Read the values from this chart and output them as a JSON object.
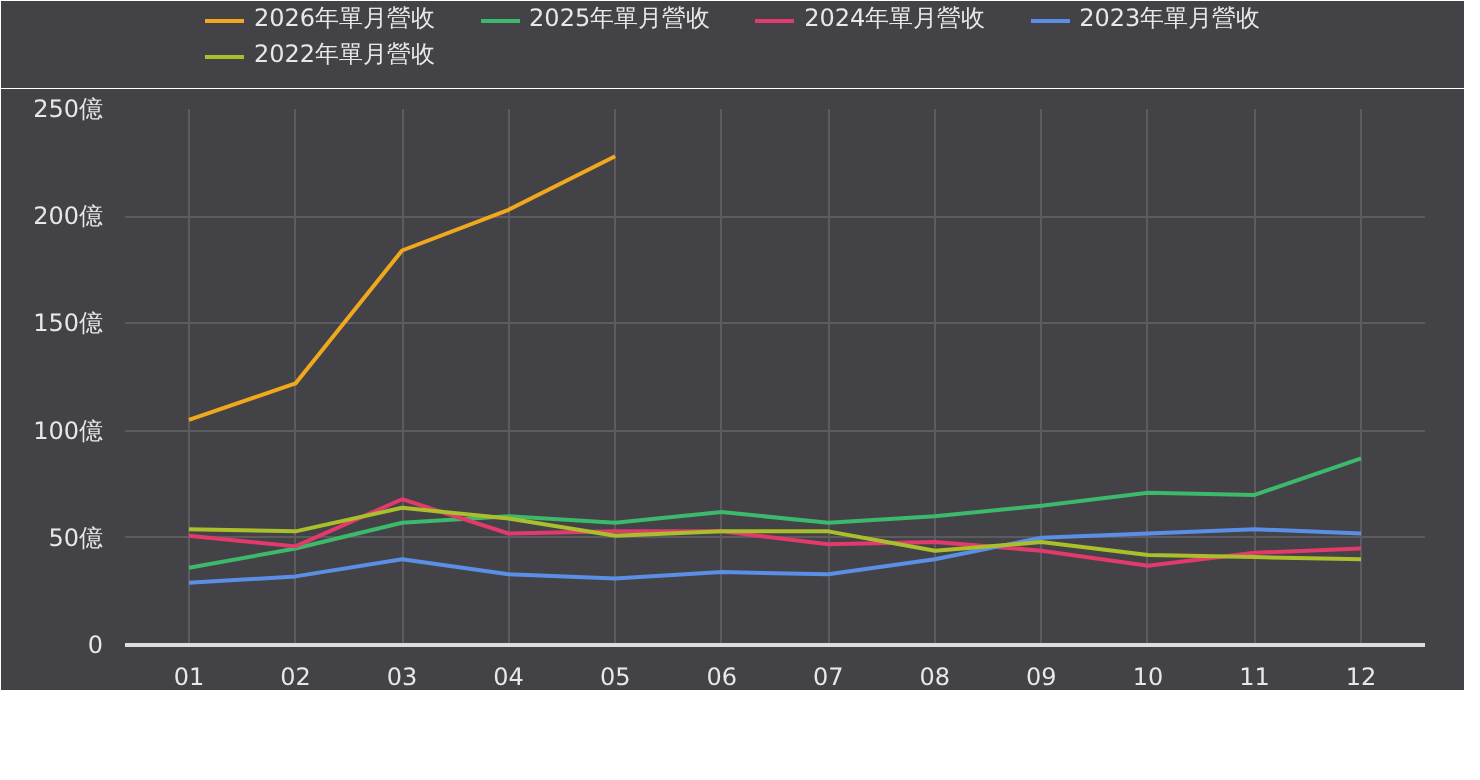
{
  "chart_data": {
    "type": "line",
    "categories": [
      "01",
      "02",
      "03",
      "04",
      "05",
      "06",
      "07",
      "08",
      "09",
      "10",
      "11",
      "12"
    ],
    "series": [
      {
        "name": "2026年單月營收",
        "color": "#f0a81c",
        "values": [
          105,
          122,
          184,
          203,
          228,
          null,
          null,
          null,
          null,
          null,
          null,
          null
        ]
      },
      {
        "name": "2025年單月營收",
        "color": "#3cb96a",
        "values": [
          36,
          45,
          57,
          60,
          57,
          62,
          57,
          60,
          65,
          71,
          70,
          87
        ]
      },
      {
        "name": "2024年單月營收",
        "color": "#e23a6d",
        "values": [
          51,
          46,
          68,
          52,
          53,
          53,
          47,
          48,
          44,
          37,
          43,
          45
        ]
      },
      {
        "name": "2023年單月營收",
        "color": "#5b8fe6",
        "values": [
          29,
          32,
          40,
          33,
          31,
          34,
          33,
          40,
          50,
          52,
          54,
          52
        ]
      },
      {
        "name": "2022年單月營收",
        "color": "#abbf2c",
        "values": [
          54,
          53,
          64,
          59,
          51,
          53,
          53,
          44,
          48,
          42,
          41,
          40
        ]
      }
    ],
    "ylim": [
      0,
      250
    ],
    "yticks": [
      0,
      {
        "value": 50,
        "label": "50億"
      },
      {
        "value": 100,
        "label": "100億"
      },
      {
        "value": 150,
        "label": "150億"
      },
      {
        "value": 200,
        "label": "200億"
      },
      {
        "value": 250,
        "label": "250億"
      }
    ],
    "grid": true,
    "legend": "top",
    "marker": "none",
    "line_style": "solid"
  }
}
